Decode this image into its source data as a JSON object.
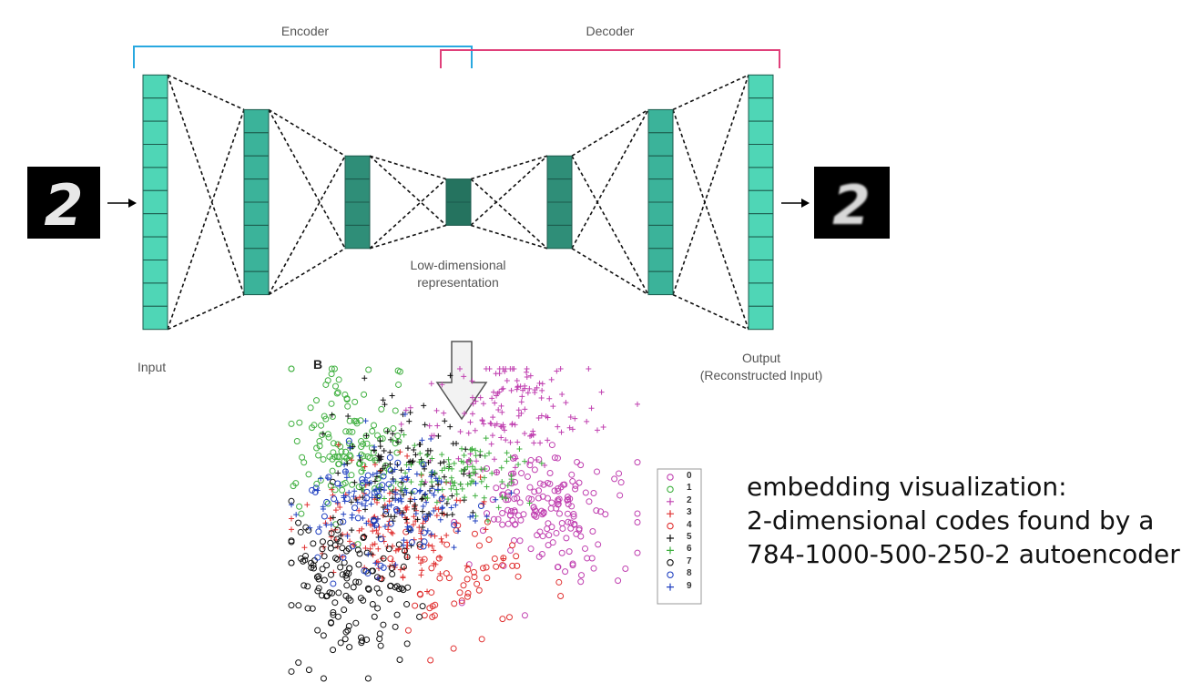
{
  "diagram": {
    "encoder_label": "Encoder",
    "decoder_label": "Decoder",
    "bottleneck_label_line1": "Low-dimensional",
    "bottleneck_label_line2": "representation",
    "input_label": "Input",
    "output_label_line1": "Output",
    "output_label_line2": "(Reconstructed Input)",
    "input_digit": "2",
    "output_digit": "2",
    "layer_cells": [
      11,
      8,
      4,
      2,
      4,
      8,
      11
    ],
    "colors": {
      "encoder_bracket": "#29a8e0",
      "decoder_bracket": "#e0407a",
      "outer_layer": "#4fd6b6",
      "mid_layer": "#3bb39a",
      "inner_layer": "#2f8e78",
      "core_layer": "#25735f"
    }
  },
  "embedding": {
    "panel_label": "B",
    "legend": [
      {
        "label": "0",
        "marker": "o",
        "color": "#c040b0"
      },
      {
        "label": "1",
        "marker": "o",
        "color": "#40b040"
      },
      {
        "label": "2",
        "marker": "+",
        "color": "#c040b0"
      },
      {
        "label": "3",
        "marker": "+",
        "color": "#e03030"
      },
      {
        "label": "4",
        "marker": "o",
        "color": "#e03030"
      },
      {
        "label": "5",
        "marker": "+",
        "color": "#111111"
      },
      {
        "label": "6",
        "marker": "+",
        "color": "#40b040"
      },
      {
        "label": "7",
        "marker": "o",
        "color": "#111111"
      },
      {
        "label": "8",
        "marker": "o",
        "color": "#2040c0"
      },
      {
        "label": "9",
        "marker": "+",
        "color": "#2040c0"
      }
    ]
  },
  "caption": {
    "line1": "embedding visualization:",
    "line2": "2-dimensional codes found by a",
    "line3": "784-1000-500-250-2 autoencoder"
  }
}
